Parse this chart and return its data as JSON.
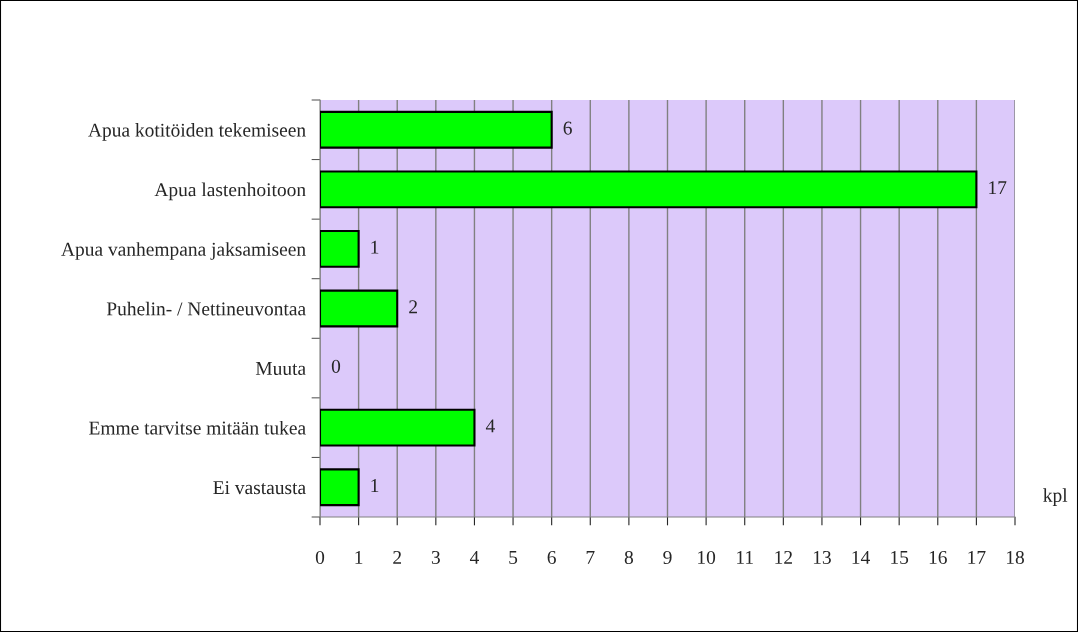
{
  "chart_data": {
    "type": "bar",
    "orientation": "horizontal",
    "categories": [
      "Apua kotitöiden tekemiseen",
      "Apua lastenhoitoon",
      "Apua vanhempana jaksamiseen",
      "Puhelin- / Nettineuvontaa",
      "Muuta",
      "Emme tarvitse mitään tukea",
      "Ei vastausta"
    ],
    "values": [
      6,
      17,
      1,
      2,
      0,
      4,
      1
    ],
    "color": "#00ff00",
    "xlabel": "kpl",
    "xlim": [
      0,
      18
    ],
    "xticks": [
      0,
      1,
      2,
      3,
      4,
      5,
      6,
      7,
      8,
      9,
      10,
      11,
      12,
      13,
      14,
      15,
      16,
      17,
      18
    ],
    "grid": "x",
    "data_labels": true,
    "legend": false
  }
}
